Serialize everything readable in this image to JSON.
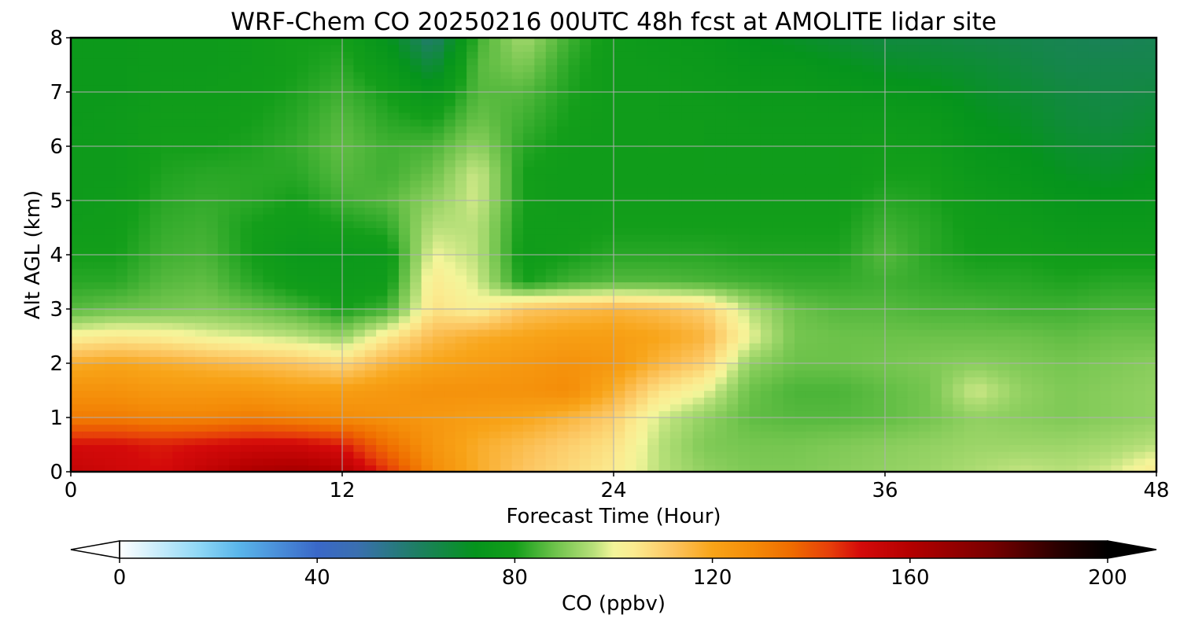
{
  "chart_data": {
    "type": "heatmap",
    "title": "WRF-Chem CO  20250216 00UTC 48h fcst at AMOLITE lidar site",
    "xlabel": "Forecast Time (Hour)",
    "ylabel": "Alt AGL (km)",
    "xlim": [
      0,
      48
    ],
    "ylim": [
      0,
      8
    ],
    "xticks": [
      0,
      12,
      24,
      36,
      48
    ],
    "yticks": [
      0,
      1,
      2,
      3,
      4,
      5,
      6,
      7,
      8
    ],
    "grid": true,
    "x": [
      0,
      2,
      4,
      6,
      8,
      10,
      12,
      14,
      16,
      18,
      20,
      22,
      24,
      26,
      28,
      30,
      32,
      34,
      36,
      38,
      40,
      42,
      44,
      46,
      48
    ],
    "y": [
      0,
      0.5,
      1,
      1.5,
      2,
      2.5,
      3,
      3.5,
      4,
      4.5,
      5,
      5.5,
      6,
      6.5,
      7,
      7.5,
      8
    ],
    "z": [
      [
        155,
        152,
        150,
        156,
        162,
        164,
        160,
        145,
        128,
        118,
        112,
        108,
        104,
        96,
        92,
        90,
        90,
        91,
        92,
        93,
        95,
        97,
        96,
        98,
        104
      ],
      [
        150,
        150,
        148,
        150,
        152,
        152,
        148,
        135,
        125,
        118,
        114,
        110,
        106,
        96,
        90,
        89,
        89,
        90,
        91,
        92,
        93,
        93,
        93,
        94,
        96
      ],
      [
        132,
        132,
        130,
        130,
        132,
        130,
        128,
        126,
        124,
        122,
        120,
        116,
        110,
        98,
        92,
        87,
        86,
        86,
        87,
        89,
        92,
        91,
        90,
        91,
        92
      ],
      [
        126,
        126,
        124,
        124,
        124,
        122,
        122,
        124,
        126,
        126,
        126,
        128,
        118,
        106,
        100,
        88,
        85,
        85,
        87,
        89,
        98,
        92,
        90,
        91,
        92
      ],
      [
        118,
        120,
        118,
        116,
        114,
        112,
        108,
        116,
        120,
        122,
        124,
        126,
        124,
        116,
        110,
        92,
        88,
        88,
        89,
        90,
        91,
        90,
        89,
        90,
        91
      ],
      [
        102,
        104,
        103,
        100,
        98,
        96,
        92,
        104,
        114,
        118,
        120,
        122,
        122,
        120,
        116,
        100,
        89,
        88,
        88,
        88,
        88,
        88,
        87,
        88,
        88
      ],
      [
        86,
        88,
        89,
        90,
        88,
        85,
        80,
        84,
        106,
        102,
        112,
        114,
        116,
        114,
        110,
        96,
        88,
        86,
        86,
        85,
        85,
        84,
        84,
        85,
        85
      ],
      [
        82,
        82,
        86,
        87,
        82,
        78,
        77,
        78,
        104,
        98,
        80,
        84,
        86,
        86,
        85,
        84,
        83,
        83,
        84,
        83,
        82,
        82,
        81,
        82,
        82
      ],
      [
        80,
        80,
        84,
        85,
        80,
        76,
        76,
        77,
        100,
        96,
        78,
        80,
        82,
        82,
        82,
        81,
        81,
        81,
        86,
        82,
        80,
        80,
        79,
        79,
        79
      ],
      [
        78,
        79,
        83,
        84,
        80,
        78,
        80,
        82,
        96,
        96,
        79,
        79,
        80,
        80,
        80,
        80,
        80,
        80,
        84,
        82,
        79,
        78,
        76,
        76,
        76
      ],
      [
        77,
        78,
        82,
        83,
        82,
        80,
        84,
        86,
        92,
        98,
        80,
        78,
        79,
        79,
        79,
        79,
        79,
        79,
        82,
        81,
        78,
        76,
        74,
        73,
        74
      ],
      [
        77,
        77,
        81,
        82,
        82,
        82,
        86,
        84,
        88,
        98,
        80,
        78,
        78,
        78,
        78,
        78,
        78,
        78,
        80,
        80,
        76,
        74,
        71,
        70,
        72
      ],
      [
        77,
        77,
        80,
        80,
        81,
        83,
        87,
        84,
        85,
        92,
        82,
        79,
        78,
        79,
        78,
        78,
        78,
        78,
        79,
        78,
        74,
        72,
        69,
        68,
        70
      ],
      [
        76,
        77,
        79,
        79,
        80,
        82,
        86,
        82,
        80,
        88,
        84,
        80,
        78,
        78,
        78,
        77,
        77,
        77,
        77,
        76,
        72,
        70,
        67,
        66,
        68
      ],
      [
        76,
        76,
        78,
        78,
        79,
        81,
        84,
        80,
        74,
        86,
        86,
        81,
        78,
        78,
        77,
        76,
        76,
        75,
        74,
        73,
        70,
        68,
        66,
        65,
        66
      ],
      [
        76,
        76,
        77,
        77,
        78,
        80,
        82,
        76,
        66,
        86,
        90,
        82,
        78,
        77,
        76,
        74,
        74,
        72,
        70,
        69,
        68,
        66,
        64,
        64,
        64
      ],
      [
        76,
        76,
        77,
        77,
        78,
        80,
        80,
        72,
        58,
        84,
        94,
        84,
        78,
        76,
        75,
        72,
        70,
        68,
        66,
        66,
        65,
        64,
        63,
        62,
        63
      ]
    ],
    "colorbar": {
      "label": "CO  (ppbv)",
      "min": 0,
      "max": 200,
      "ticks": [
        0,
        40,
        80,
        120,
        160,
        200
      ],
      "extend": "both",
      "stops": [
        [
          0,
          "#ffffff"
        ],
        [
          16,
          "#8fd8f6"
        ],
        [
          24,
          "#5ab6ea"
        ],
        [
          40,
          "#3a68c8"
        ],
        [
          48,
          "#3a6fb0"
        ],
        [
          60,
          "#1e7e64"
        ],
        [
          72,
          "#05941c"
        ],
        [
          80,
          "#139e1a"
        ],
        [
          88,
          "#6cc24a"
        ],
        [
          96,
          "#b8e07a"
        ],
        [
          100,
          "#f3f59a"
        ],
        [
          104,
          "#fbeb90"
        ],
        [
          112,
          "#fcc560"
        ],
        [
          120,
          "#f8a418"
        ],
        [
          128,
          "#f48c08"
        ],
        [
          136,
          "#ef6c00"
        ],
        [
          144,
          "#e63d0a"
        ],
        [
          150,
          "#d40a0a"
        ],
        [
          160,
          "#b40000"
        ],
        [
          176,
          "#7a0000"
        ],
        [
          190,
          "#2a0000"
        ],
        [
          200,
          "#000000"
        ]
      ]
    }
  }
}
